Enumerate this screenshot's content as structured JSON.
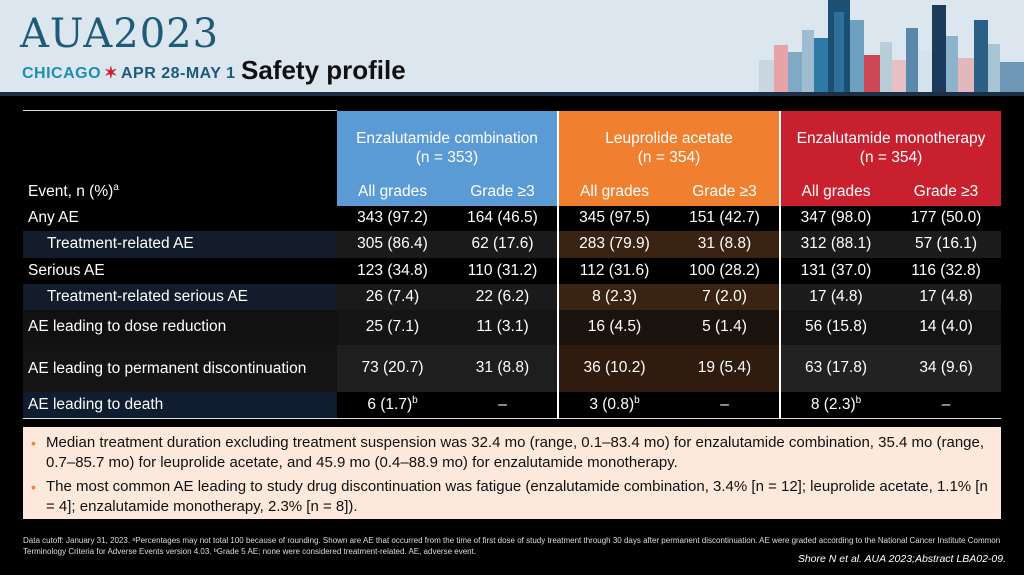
{
  "header": {
    "logo_main": "AUA2023",
    "logo_city": "CHICAGO",
    "logo_star": "✶",
    "logo_dates": "APR 28-MAY 1",
    "title": "Safety profile"
  },
  "colors": {
    "blue": "#5a9bd5",
    "orange": "#f08030",
    "red": "#c8202f",
    "notes_bg": "#fde8dc"
  },
  "table": {
    "event_header": "Event, n (%)",
    "event_header_sup": "a",
    "groups": [
      {
        "name": "Enzalutamide combination",
        "n": "(n = 353)",
        "color": "blue"
      },
      {
        "name": "Leuprolide acetate",
        "n": "(n = 354)",
        "color": "orange"
      },
      {
        "name": "Enzalutamide monotherapy",
        "n": "(n = 354)",
        "color": "red"
      }
    ],
    "sub_headers": [
      "All grades",
      "Grade ≥3",
      "All grades",
      "Grade ≥3",
      "All grades",
      "Grade ≥3"
    ],
    "rows": [
      {
        "label": "Any AE",
        "values": [
          "343 (97.2)",
          "164 (46.5)",
          "345 (97.5)",
          "151 (42.7)",
          "347 (98.0)",
          "177 (50.0)"
        ]
      },
      {
        "label": "Treatment-related AE",
        "values": [
          "305 (86.4)",
          "62 (17.6)",
          "283 (79.9)",
          "31 (8.8)",
          "312 (88.1)",
          "57 (16.1)"
        ]
      },
      {
        "label": "Serious AE",
        "values": [
          "123 (34.8)",
          "110 (31.2)",
          "112 (31.6)",
          "100 (28.2)",
          "131 (37.0)",
          "116 (32.8)"
        ]
      },
      {
        "label": "Treatment-related serious AE",
        "values": [
          "26 (7.4)",
          "22 (6.2)",
          "8 (2.3)",
          "7 (2.0)",
          "17 (4.8)",
          "17 (4.8)"
        ]
      },
      {
        "label": "AE leading to dose reduction",
        "values": [
          "25 (7.1)",
          "11 (3.1)",
          "16 (4.5)",
          "5 (1.4)",
          "56 (15.8)",
          "14 (4.0)"
        ]
      },
      {
        "label": "AE leading to permanent discontinuation",
        "values": [
          "73 (20.7)",
          "31 (8.8)",
          "36 (10.2)",
          "19 (5.4)",
          "63 (17.8)",
          "34 (9.6)"
        ]
      },
      {
        "label": "AE leading to death",
        "values": [
          "6 (1.7)",
          "–",
          "3 (0.8)",
          "–",
          "8 (2.3)",
          "–"
        ],
        "sup": "b"
      }
    ]
  },
  "notes": [
    "Median treatment duration excluding treatment suspension was 32.4 mo (range, 0.1–83.4 mo) for enzalutamide combination, 35.4 mo (range, 0.7–85.7 mo) for leuprolide acetate, and 45.9 mo (0.4–88.9 mo) for enzalutamide monotherapy.",
    "The most common AE leading to study drug discontinuation was fatigue (enzalutamide combination, 3.4% [n = 12]; leuprolide acetate, 1.1% [n = 4]; enzalutamide monotherapy, 2.3% [n = 8])."
  ],
  "footnote": "Data cutoff: January 31, 2023. ᵃPercentages may not total 100 because of rounding. Shown are AE that occurred from the time of first dose of study treatment through 30 days after permanent discontinuation. AE were graded according to the National Cancer Institute Common Terminology Criteria for Adverse Events version 4.03. ᵇGrade 5 AE; none were considered treatment-related. AE, adverse event.",
  "citation": "Shore N et al. AUA 2023;Abstract LBA02-09."
}
